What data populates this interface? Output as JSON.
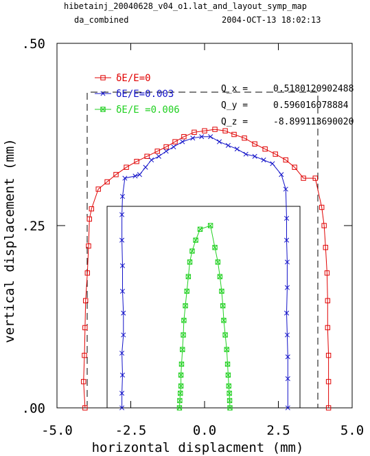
{
  "header": {
    "title": "hibetainj_20040628_v04_o1.lat_and_layout_symp_map",
    "subtitle": "da_combined",
    "timestamp": "2004-OCT-13  18:02:13"
  },
  "tunes": [
    {
      "label": "Q_x  =",
      "value": "0.5180120902488"
    },
    {
      "label": "Q_y  =",
      "value": "0.596016078884"
    },
    {
      "label": "Q_z  =",
      "value": "-8.899113690020"
    }
  ],
  "colors": {
    "axes": "#000000",
    "series_red": "#e00000",
    "series_blue": "#1010c8",
    "series_green": "#20d020"
  },
  "chart_data": {
    "type": "line",
    "title": "hibetainj_20040628_v04_o1.lat_and_layout_symp_map",
    "xlabel": "horizontal displacment (mm)",
    "ylabel": "vertical displacement (mm)",
    "xlim": [
      -5.0,
      5.0
    ],
    "ylim": [
      0.0,
      0.5
    ],
    "x_ticks": [
      "-5.0",
      "-2.5",
      "0.0",
      "2.5",
      "5.0"
    ],
    "y_ticks": [
      ".00",
      ".25",
      ".50"
    ],
    "x_tick_values": [
      -5.0,
      -2.5,
      0.0,
      2.5,
      5.0
    ],
    "y_tick_values": [
      0.0,
      0.25,
      0.5
    ],
    "legend_placement": "top-left",
    "series": [
      {
        "name": "δE/E=0",
        "color": "#e00000",
        "marker": "square",
        "points": [
          [
            -4.05,
            0.0
          ],
          [
            -4.1,
            0.036
          ],
          [
            -4.07,
            0.072
          ],
          [
            -4.05,
            0.11
          ],
          [
            -4.03,
            0.147
          ],
          [
            -3.97,
            0.185
          ],
          [
            -3.93,
            0.222
          ],
          [
            -3.9,
            0.259
          ],
          [
            -3.83,
            0.273
          ],
          [
            -3.6,
            0.3
          ],
          [
            -3.3,
            0.31
          ],
          [
            -3.0,
            0.32
          ],
          [
            -2.65,
            0.33
          ],
          [
            -2.3,
            0.338
          ],
          [
            -1.95,
            0.345
          ],
          [
            -1.6,
            0.352
          ],
          [
            -1.3,
            0.358
          ],
          [
            -1.0,
            0.365
          ],
          [
            -0.7,
            0.372
          ],
          [
            -0.35,
            0.378
          ],
          [
            0.0,
            0.38
          ],
          [
            0.35,
            0.382
          ],
          [
            0.7,
            0.38
          ],
          [
            1.0,
            0.375
          ],
          [
            1.35,
            0.37
          ],
          [
            1.7,
            0.362
          ],
          [
            2.05,
            0.355
          ],
          [
            2.4,
            0.348
          ],
          [
            2.75,
            0.34
          ],
          [
            3.05,
            0.33
          ],
          [
            3.35,
            0.315
          ],
          [
            3.75,
            0.315
          ],
          [
            3.97,
            0.275
          ],
          [
            4.05,
            0.25
          ],
          [
            4.1,
            0.22
          ],
          [
            4.15,
            0.185
          ],
          [
            4.17,
            0.147
          ],
          [
            4.17,
            0.11
          ],
          [
            4.2,
            0.072
          ],
          [
            4.2,
            0.036
          ],
          [
            4.2,
            0.0
          ]
        ]
      },
      {
        "name": "δE/E=0.003",
        "color": "#1010c8",
        "marker": "x",
        "points": [
          [
            -2.8,
            0.0
          ],
          [
            -2.8,
            0.02
          ],
          [
            -2.78,
            0.045
          ],
          [
            -2.8,
            0.075
          ],
          [
            -2.75,
            0.1
          ],
          [
            -2.75,
            0.13
          ],
          [
            -2.78,
            0.16
          ],
          [
            -2.78,
            0.195
          ],
          [
            -2.8,
            0.23
          ],
          [
            -2.8,
            0.265
          ],
          [
            -2.78,
            0.29
          ],
          [
            -2.7,
            0.315
          ],
          [
            -2.35,
            0.318
          ],
          [
            -2.2,
            0.32
          ],
          [
            -2.0,
            0.33
          ],
          [
            -1.8,
            0.34
          ],
          [
            -1.55,
            0.345
          ],
          [
            -1.3,
            0.352
          ],
          [
            -1.05,
            0.358
          ],
          [
            -0.75,
            0.365
          ],
          [
            -0.4,
            0.37
          ],
          [
            -0.1,
            0.372
          ],
          [
            0.2,
            0.372
          ],
          [
            0.5,
            0.365
          ],
          [
            0.8,
            0.36
          ],
          [
            1.1,
            0.355
          ],
          [
            1.4,
            0.348
          ],
          [
            1.7,
            0.345
          ],
          [
            2.0,
            0.34
          ],
          [
            2.3,
            0.335
          ],
          [
            2.6,
            0.32
          ],
          [
            2.75,
            0.3
          ],
          [
            2.78,
            0.26
          ],
          [
            2.78,
            0.23
          ],
          [
            2.8,
            0.2
          ],
          [
            2.8,
            0.165
          ],
          [
            2.78,
            0.13
          ],
          [
            2.8,
            0.1
          ],
          [
            2.82,
            0.07
          ],
          [
            2.82,
            0.04
          ],
          [
            2.82,
            0.0
          ]
        ]
      },
      {
        "name": "δE/E =0.006",
        "color": "#20d020",
        "marker": "boxed-x",
        "points": [
          [
            -0.85,
            0.0
          ],
          [
            -0.84,
            0.01
          ],
          [
            -0.82,
            0.02
          ],
          [
            -0.8,
            0.03
          ],
          [
            -0.8,
            0.045
          ],
          [
            -0.78,
            0.06
          ],
          [
            -0.75,
            0.08
          ],
          [
            -0.72,
            0.1
          ],
          [
            -0.7,
            0.12
          ],
          [
            -0.65,
            0.14
          ],
          [
            -0.6,
            0.16
          ],
          [
            -0.55,
            0.18
          ],
          [
            -0.5,
            0.2
          ],
          [
            -0.42,
            0.215
          ],
          [
            -0.3,
            0.23
          ],
          [
            -0.15,
            0.245
          ],
          [
            0.2,
            0.25
          ],
          [
            0.35,
            0.22
          ],
          [
            0.45,
            0.2
          ],
          [
            0.52,
            0.18
          ],
          [
            0.58,
            0.16
          ],
          [
            0.62,
            0.14
          ],
          [
            0.65,
            0.12
          ],
          [
            0.7,
            0.1
          ],
          [
            0.75,
            0.08
          ],
          [
            0.78,
            0.06
          ],
          [
            0.8,
            0.045
          ],
          [
            0.82,
            0.03
          ],
          [
            0.84,
            0.02
          ],
          [
            0.85,
            0.01
          ],
          [
            0.86,
            0.0
          ]
        ]
      }
    ]
  }
}
